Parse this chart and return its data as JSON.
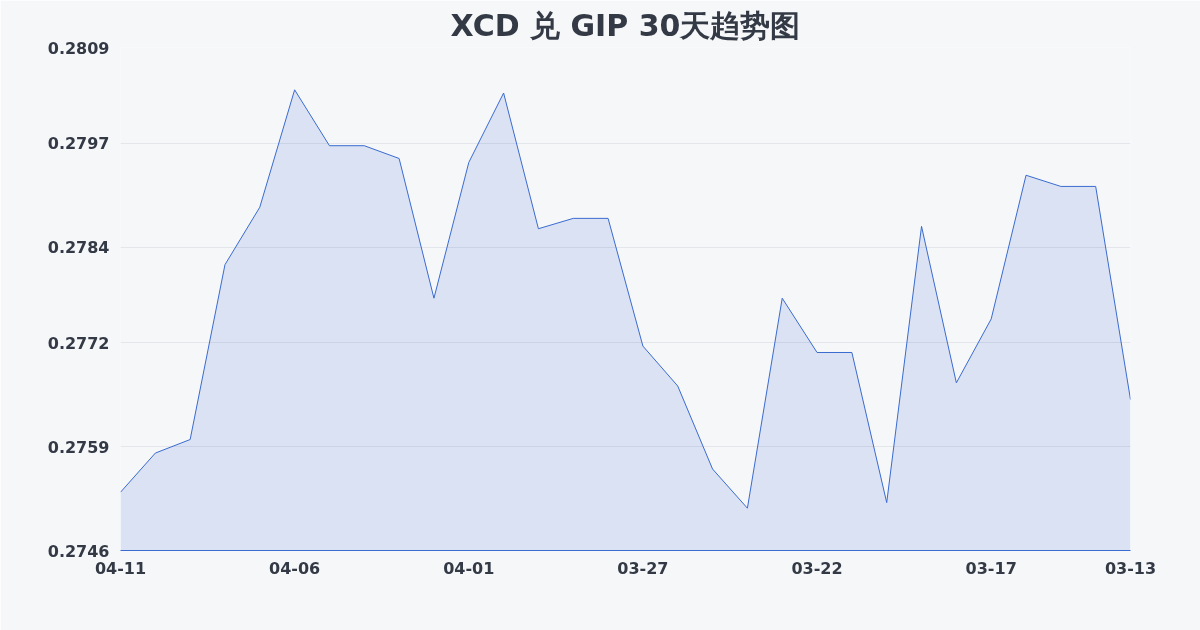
{
  "chart_data": {
    "type": "area",
    "title": "XCD 兑 GIP 30天趋势图",
    "categories": [
      "04-11",
      null,
      null,
      null,
      null,
      "04-06",
      null,
      null,
      null,
      null,
      "04-01",
      null,
      null,
      null,
      null,
      "03-27",
      null,
      null,
      null,
      null,
      "03-22",
      null,
      null,
      null,
      null,
      "03-17",
      null,
      null,
      null,
      "03-13"
    ],
    "series": [
      {
        "color": "#3a6bd0",
        "values": [
          0.27533,
          0.27582,
          0.27599,
          0.27818,
          0.2789,
          0.28037,
          0.27967,
          0.27967,
          0.27951,
          0.27776,
          0.27946,
          0.28033,
          0.27863,
          0.27876,
          0.27876,
          0.27716,
          0.27666,
          0.27562,
          0.27513,
          0.27776,
          0.27708,
          0.27708,
          0.2752,
          0.27866,
          0.2767,
          0.2775,
          0.2793,
          0.27916,
          0.27916,
          0.27649
        ]
      }
    ],
    "ylim": [
      0.2746,
      0.2809
    ],
    "yticks": [
      0.2746,
      0.2759,
      0.2772,
      0.2784,
      0.2797,
      0.2809
    ],
    "grid": "y"
  }
}
